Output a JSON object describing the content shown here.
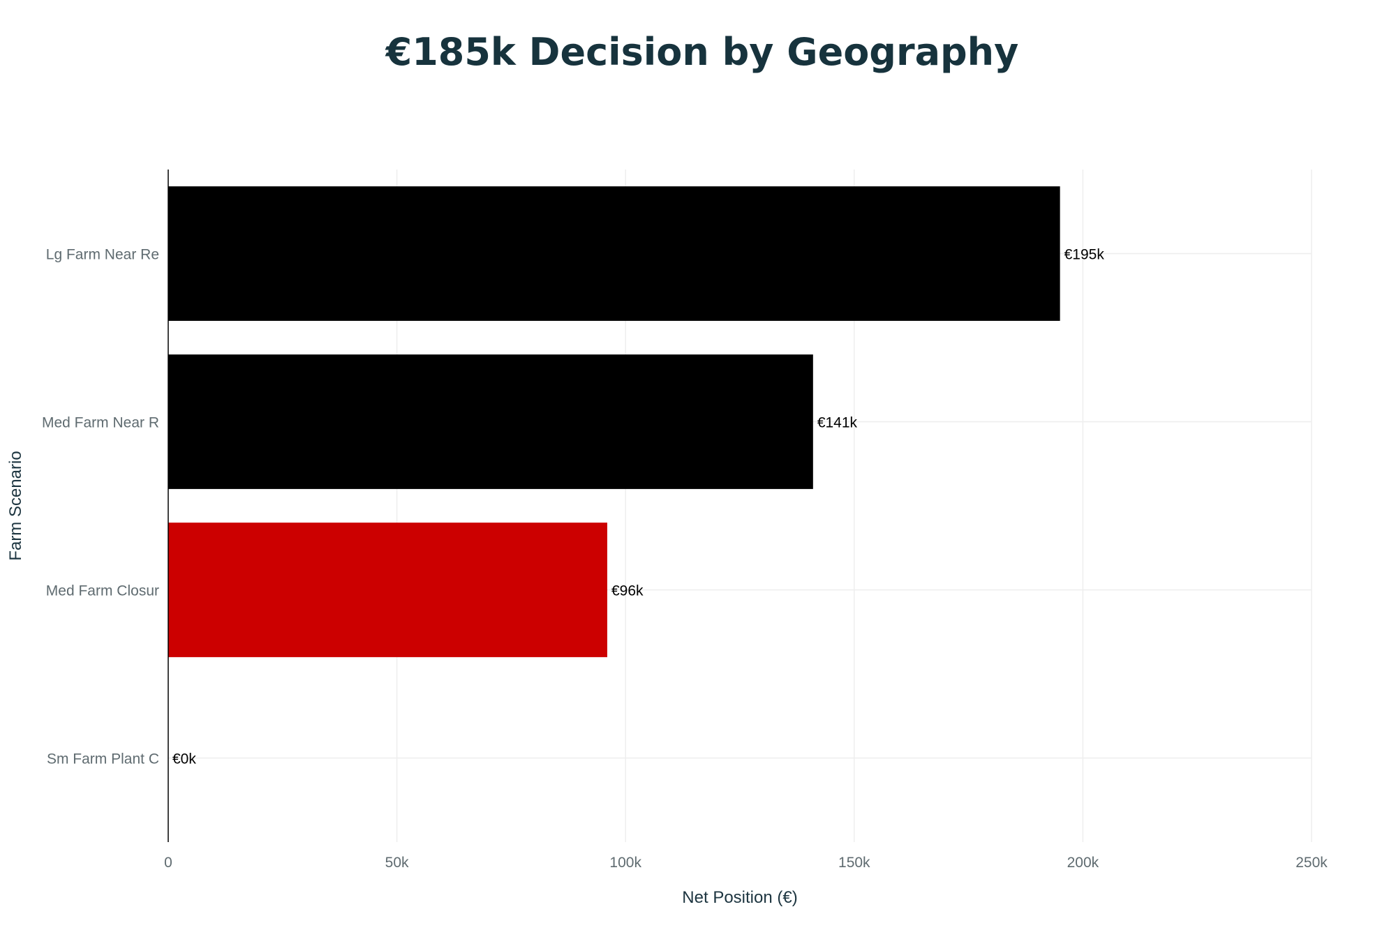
{
  "chart_data": {
    "type": "bar",
    "orientation": "horizontal",
    "title": "€185k Decision by Geography",
    "xlabel": "Net Position (€)",
    "ylabel": "Farm Scenario",
    "xlim": [
      0,
      250000
    ],
    "x_ticks": [
      {
        "value": 0,
        "label": "0"
      },
      {
        "value": 50000,
        "label": "50k"
      },
      {
        "value": 100000,
        "label": "100k"
      },
      {
        "value": 150000,
        "label": "150k"
      },
      {
        "value": 200000,
        "label": "200k"
      },
      {
        "value": 250000,
        "label": "250k"
      }
    ],
    "categories": [
      "Lg Farm Near Re",
      "Med Farm Near R",
      "Med Farm Closur",
      "Sm Farm Plant C"
    ],
    "values": [
      195000,
      141000,
      96000,
      0
    ],
    "data_labels": [
      "€195k",
      "€141k",
      "€96k",
      "€0k"
    ],
    "bar_colors": [
      "#000000",
      "#000000",
      "#cc0000",
      "#000000"
    ],
    "grid": true,
    "legend": "none"
  }
}
